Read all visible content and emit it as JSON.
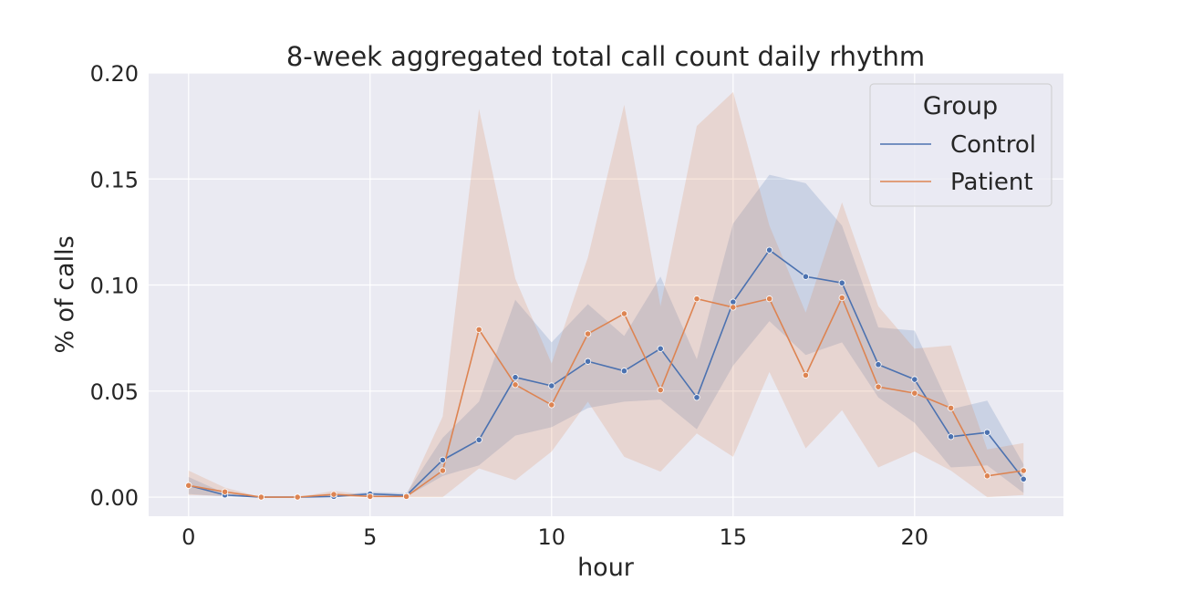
{
  "chart_data": {
    "type": "line",
    "title": "8-week aggregated total call count daily rhythm",
    "xlabel": "hour",
    "ylabel": "% of calls",
    "xlim": [
      -1.1,
      24.1
    ],
    "ylim": [
      -0.009,
      0.2
    ],
    "xticks": [
      0,
      5,
      10,
      15,
      20
    ],
    "xtick_labels": [
      "0",
      "5",
      "10",
      "15",
      "20"
    ],
    "yticks": [
      0.0,
      0.05,
      0.1,
      0.15,
      0.2
    ],
    "ytick_labels": [
      "0.00",
      "0.05",
      "0.10",
      "0.15",
      "0.20"
    ],
    "grid": true,
    "legend": {
      "title": "Group",
      "placement": "top-right"
    },
    "x": [
      0,
      1,
      2,
      3,
      4,
      5,
      6,
      7,
      8,
      9,
      10,
      11,
      12,
      13,
      14,
      15,
      16,
      17,
      18,
      19,
      20,
      21,
      22,
      23
    ],
    "series": [
      {
        "name": "Control",
        "color": "#4c72b0",
        "values": [
          0.0055,
          0.001,
          0.0,
          0.0,
          0.0003,
          0.0015,
          0.0008,
          0.0175,
          0.027,
          0.0565,
          0.0525,
          0.064,
          0.0595,
          0.07,
          0.047,
          0.092,
          0.1165,
          0.104,
          0.101,
          0.0625,
          0.0555,
          0.0285,
          0.0305,
          0.0085
        ],
        "ci_lower": [
          0.0015,
          0.0003,
          0.0,
          0.0,
          0.0,
          0.0005,
          0.0002,
          0.01,
          0.015,
          0.029,
          0.033,
          0.042,
          0.045,
          0.046,
          0.032,
          0.062,
          0.083,
          0.067,
          0.073,
          0.047,
          0.035,
          0.014,
          0.015,
          0.002
        ],
        "ci_upper": [
          0.0095,
          0.0018,
          0.0,
          0.0,
          0.0008,
          0.0025,
          0.0018,
          0.028,
          0.045,
          0.093,
          0.073,
          0.091,
          0.076,
          0.104,
          0.065,
          0.129,
          0.152,
          0.148,
          0.128,
          0.08,
          0.0785,
          0.0415,
          0.0455,
          0.0155
        ]
      },
      {
        "name": "Patient",
        "color": "#dd8452",
        "values": [
          0.0055,
          0.0025,
          0.0,
          0.0,
          0.0013,
          0.0003,
          0.0003,
          0.0125,
          0.079,
          0.053,
          0.0435,
          0.077,
          0.0865,
          0.0505,
          0.0935,
          0.0895,
          0.0935,
          0.0575,
          0.094,
          0.052,
          0.049,
          0.042,
          0.01,
          0.0125
        ],
        "ci_lower": [
          0.001,
          0.0005,
          0.0,
          0.0,
          0.0003,
          0.0,
          0.0,
          0.0,
          0.0135,
          0.008,
          0.0215,
          0.045,
          0.019,
          0.012,
          0.03,
          0.019,
          0.059,
          0.023,
          0.041,
          0.014,
          0.0215,
          0.0125,
          0.0,
          0.001
        ],
        "ci_upper": [
          0.0125,
          0.0045,
          0.0,
          0.0,
          0.003,
          0.0008,
          0.0008,
          0.038,
          0.183,
          0.103,
          0.063,
          0.113,
          0.185,
          0.09,
          0.175,
          0.191,
          0.128,
          0.087,
          0.139,
          0.09,
          0.07,
          0.0715,
          0.0225,
          0.0255
        ]
      }
    ]
  }
}
